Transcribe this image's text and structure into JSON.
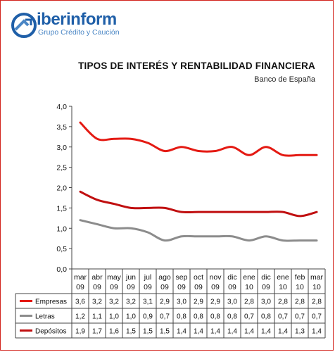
{
  "header": {
    "brand": "iberinform",
    "tagline": "Grupo Crédito y Caución",
    "title": "TIPOS DE INTERÉS Y RENTABILIDAD FINANCIERA",
    "subtitle": "Banco de España"
  },
  "colors": {
    "empresas": "#e41a13",
    "letras": "#8c8c8c",
    "depositos": "#c00f10",
    "brand": "#1f5fa8",
    "border": "#d2231c"
  },
  "icons": [
    "iberinform-logo-icon"
  ],
  "chart_data": {
    "type": "line",
    "categories": [
      [
        "mar",
        "09"
      ],
      [
        "abr",
        "09"
      ],
      [
        "may",
        "09"
      ],
      [
        "jun",
        "09"
      ],
      [
        "jul",
        "09"
      ],
      [
        "ago",
        "09"
      ],
      [
        "sep",
        "09"
      ],
      [
        "oct",
        "09"
      ],
      [
        "nov",
        "09"
      ],
      [
        "dic",
        "09"
      ],
      [
        "ene",
        "10"
      ],
      [
        "dic",
        "09"
      ],
      [
        "ene",
        "10"
      ],
      [
        "feb",
        "10"
      ],
      [
        "mar",
        "10"
      ]
    ],
    "ylim": [
      0,
      4
    ],
    "yticks": [
      "0,0",
      "0,5",
      "1,0",
      "1,5",
      "2,0",
      "2,5",
      "3,0",
      "3,5",
      "4,0"
    ],
    "ytick_values": [
      0,
      0.5,
      1,
      1.5,
      2,
      2.5,
      3,
      3.5,
      4
    ],
    "grid": false,
    "legend": "table-below",
    "series": [
      {
        "name": "Empresas",
        "color": "#e41a13",
        "values": [
          3.6,
          3.2,
          3.2,
          3.2,
          3.1,
          2.9,
          3.0,
          2.9,
          2.9,
          3.0,
          2.8,
          3.0,
          2.8,
          2.8,
          2.8
        ],
        "labels": [
          "3,6",
          "3,2",
          "3,2",
          "3,2",
          "3,1",
          "2,9",
          "3,0",
          "2,9",
          "2,9",
          "3,0",
          "2,8",
          "3,0",
          "2,8",
          "2,8",
          "2,8"
        ]
      },
      {
        "name": "Letras",
        "color": "#8c8c8c",
        "values": [
          1.2,
          1.1,
          1.0,
          1.0,
          0.9,
          0.7,
          0.8,
          0.8,
          0.8,
          0.8,
          0.7,
          0.8,
          0.7,
          0.7,
          0.7
        ],
        "labels": [
          "1,2",
          "1,1",
          "1,0",
          "1,0",
          "0,9",
          "0,7",
          "0,8",
          "0,8",
          "0,8",
          "0,8",
          "0,7",
          "0,8",
          "0,7",
          "0,7",
          "0,7"
        ]
      },
      {
        "name": "Depósitos",
        "color": "#c00f10",
        "values": [
          1.9,
          1.7,
          1.6,
          1.5,
          1.5,
          1.5,
          1.4,
          1.4,
          1.4,
          1.4,
          1.4,
          1.4,
          1.4,
          1.3,
          1.4
        ],
        "labels": [
          "1,9",
          "1,7",
          "1,6",
          "1,5",
          "1,5",
          "1,5",
          "1,4",
          "1,4",
          "1,4",
          "1,4",
          "1,4",
          "1,4",
          "1,4",
          "1,3",
          "1,4"
        ]
      }
    ]
  }
}
